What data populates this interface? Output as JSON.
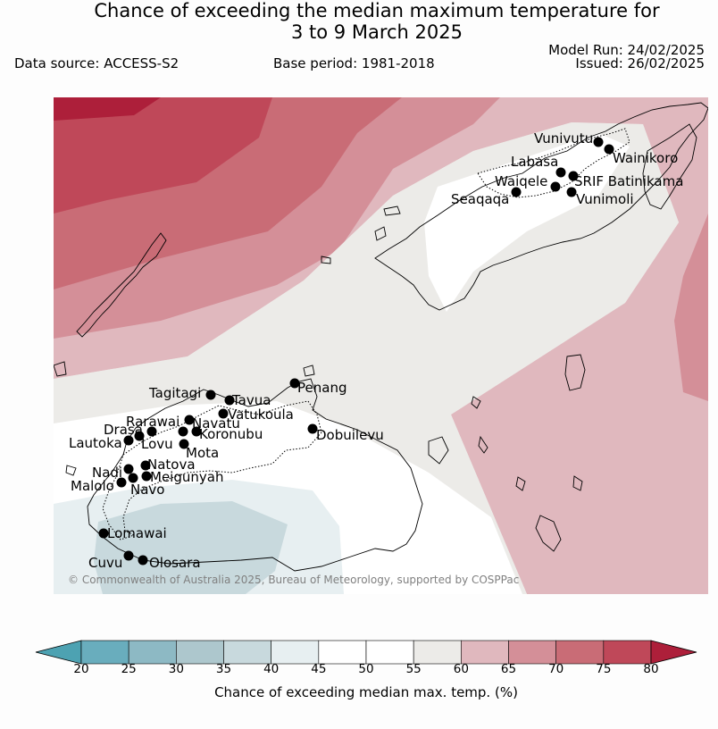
{
  "header": {
    "title_line1": "Chance of exceeding the median maximum temperature for",
    "title_line2": "3 to 9 March 2025",
    "data_source": "Data source: ACCESS-S2",
    "base_period": "Base period: 1981-2018",
    "model_run": "Model Run: 24/02/2025",
    "issued": "Issued: 26/02/2025"
  },
  "map": {
    "copyright": "© Commonwealth of Australia 2025, Bureau of Meteorology, supported by COSPPac",
    "stations": [
      {
        "name": "Vunivutu"
      },
      {
        "name": "Wainikoro"
      },
      {
        "name": "Labasa"
      },
      {
        "name": "Waiqele"
      },
      {
        "name": "SRIF Batinikama"
      },
      {
        "name": "Seaqaqa"
      },
      {
        "name": "Vunimoli"
      },
      {
        "name": "Tagitagi"
      },
      {
        "name": "Tavua"
      },
      {
        "name": "Penang"
      },
      {
        "name": "Vatukoula"
      },
      {
        "name": "Rarawai"
      },
      {
        "name": "Navatu"
      },
      {
        "name": "Drasa"
      },
      {
        "name": "Koronubu"
      },
      {
        "name": "Dobuilevu"
      },
      {
        "name": "Lautoka"
      },
      {
        "name": "Lovu"
      },
      {
        "name": "Mota"
      },
      {
        "name": "Natova"
      },
      {
        "name": "Nadi"
      },
      {
        "name": "Meigunyah"
      },
      {
        "name": "Malolo"
      },
      {
        "name": "Navo"
      },
      {
        "name": "Lomawai"
      },
      {
        "name": "Cuvu"
      },
      {
        "name": "Olosara"
      }
    ]
  },
  "colorbar": {
    "ticks": [
      "20",
      "25",
      "30",
      "35",
      "40",
      "45",
      "50",
      "55",
      "60",
      "65",
      "70",
      "75",
      "80"
    ],
    "colors": [
      "#4da2b2",
      "#69adbd",
      "#8db9c4",
      "#adc7cd",
      "#c8d9dd",
      "#e7eff1",
      "#ffffff",
      "#ffffff",
      "#ecebe8",
      "#e0b8be",
      "#d48f98",
      "#c96c76",
      "#bf4859",
      "#ad1f3a"
    ],
    "label": "Chance of exceeding median max. temp. (%)"
  }
}
